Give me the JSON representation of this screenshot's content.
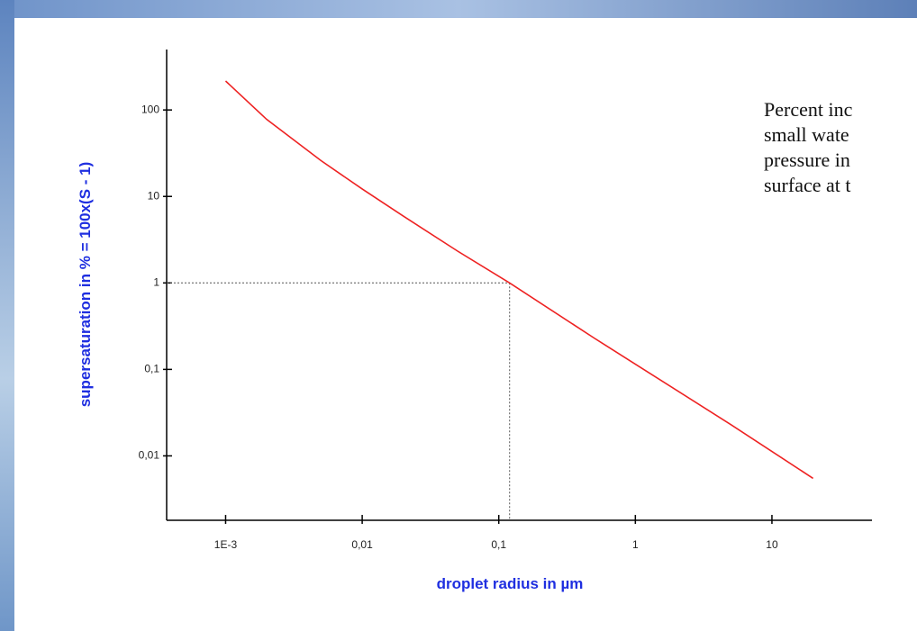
{
  "chart_data": {
    "type": "line",
    "x_label": "droplet radius in µm",
    "y_label": "supersaturation in % = 100x(S - 1)",
    "log_x": true,
    "log_y": true,
    "xlim": [
      0.00037,
      54
    ],
    "ylim": [
      0.0018,
      500
    ],
    "xticks": [
      {
        "value": 0.001,
        "label": "1E-3"
      },
      {
        "value": 0.01,
        "label": "0,01"
      },
      {
        "value": 0.1,
        "label": "0,1"
      },
      1,
      10
    ],
    "yticks": [
      {
        "value": 0.01,
        "label": "0,01"
      },
      {
        "value": 0.1,
        "label": "0,1"
      },
      1,
      10,
      100
    ],
    "x": [
      0.001,
      0.002,
      0.005,
      0.01,
      0.02,
      0.05,
      0.12,
      0.5,
      1,
      5,
      20
    ],
    "series": [
      {
        "color": "#ee2222",
        "values": [
          216,
          77.7,
          25.9,
          12.2,
          5.92,
          2.33,
          1,
          0.23,
          0.115,
          0.023,
          0.0055
        ]
      }
    ],
    "reference": {
      "x": 0.12,
      "y": 1,
      "color": "#555555"
    },
    "annotation": [
      "Percent inc",
      "small wate",
      "pressure in",
      "surface at t"
    ]
  }
}
